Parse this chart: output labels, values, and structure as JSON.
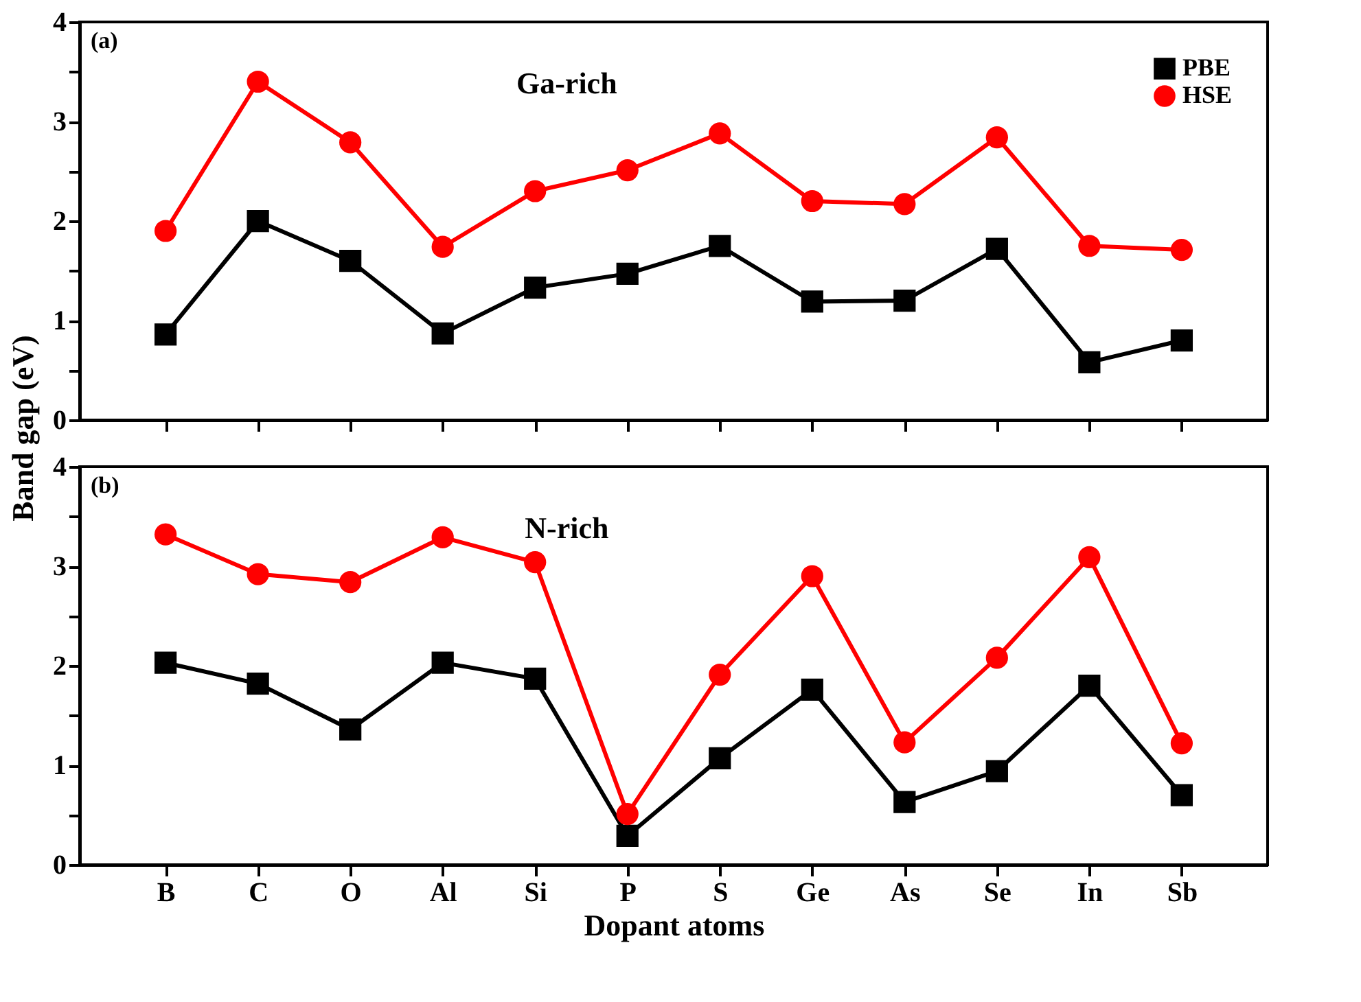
{
  "chart_data": [
    {
      "type": "line",
      "ylabel": "Band gap (eV)",
      "annotations": [
        "(a)",
        "Ga-rich"
      ],
      "categories": [
        null,
        null,
        null,
        null,
        null,
        null,
        null,
        null,
        null,
        null,
        null,
        null
      ],
      "tick_labels": "y",
      "legend": "top right",
      "line_style": "solid",
      "series": [
        {
          "name": "PBE",
          "color": "#000000",
          "marker": "square",
          "values": [
            0.86,
            2.0,
            1.6,
            0.87,
            1.33,
            1.47,
            1.75,
            1.19,
            1.2,
            1.72,
            0.58,
            0.8
          ]
        },
        {
          "name": "HSE",
          "color": "#ff0000",
          "marker": "circle",
          "values": [
            1.9,
            3.4,
            2.79,
            1.74,
            2.3,
            2.51,
            2.88,
            2.2,
            2.17,
            2.84,
            1.75,
            1.71
          ]
        }
      ],
      "ylim": [
        0,
        4
      ],
      "yticks": [
        0,
        {
          "value": 0.5,
          "label": null
        },
        1,
        {
          "value": 1.5,
          "label": null
        },
        2,
        {
          "value": 2.5,
          "label": null
        },
        3,
        {
          "value": 3.5,
          "label": null
        },
        4
      ]
    },
    {
      "type": "line",
      "xlabel": "Dopant atoms",
      "annotations": [
        "(b)",
        "N-rich"
      ],
      "categories": [
        "B",
        "C",
        "O",
        "Al",
        "Si",
        "P",
        "S",
        "Ge",
        "As",
        "Se",
        "In",
        "Sb"
      ],
      "line_style": "solid",
      "series": [
        {
          "color": "#000000",
          "marker": "square",
          "values": [
            2.03,
            1.82,
            1.36,
            2.03,
            1.87,
            0.29,
            1.07,
            1.76,
            0.63,
            0.94,
            1.8,
            0.7
          ]
        },
        {
          "color": "#ff0000",
          "marker": "circle",
          "values": [
            3.32,
            2.92,
            2.84,
            3.29,
            3.04,
            0.51,
            1.91,
            2.9,
            1.23,
            2.08,
            3.09,
            1.22
          ]
        }
      ],
      "ylim": [
        0,
        4
      ],
      "yticks": [
        0,
        {
          "value": 0.5,
          "label": null
        },
        1,
        {
          "value": 1.5,
          "label": null
        },
        2,
        {
          "value": 2.5,
          "label": null
        },
        3,
        {
          "value": 3.5,
          "label": null
        },
        4
      ]
    }
  ]
}
